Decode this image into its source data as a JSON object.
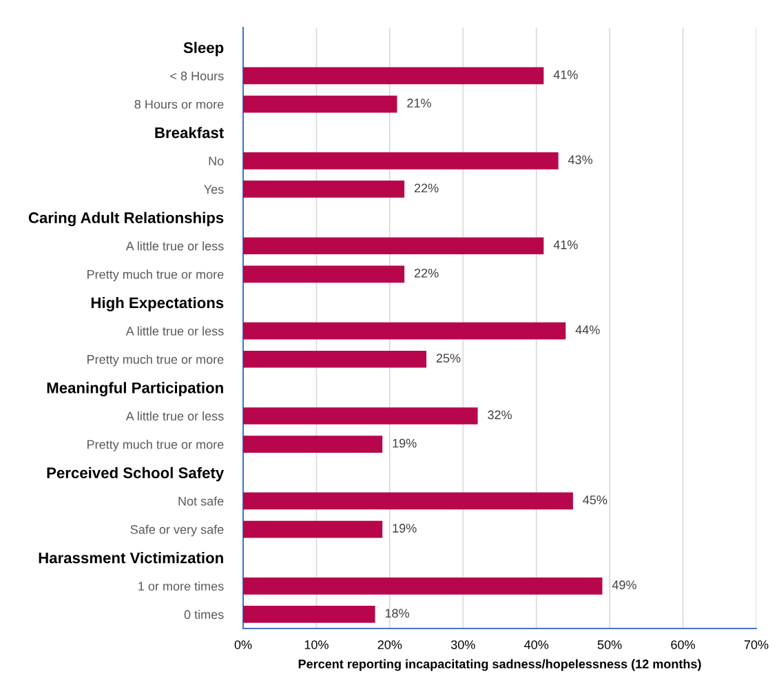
{
  "chart_data": {
    "type": "bar",
    "orientation": "horizontal",
    "xlabel": "Percent reporting incapacitating sadness/hopelessness (12 months)",
    "categories": [
      "Sleep",
      "< 8 Hours",
      "8 Hours or more",
      "Breakfast",
      "No",
      "Yes",
      "Caring Adult Relationships",
      "A little true or less",
      "Pretty much true or more",
      "High Expectations",
      "A little true or less",
      "Pretty much true or more",
      "Meaningful Participation",
      "A little true or less",
      "Pretty much true or more",
      "Perceived School Safety",
      "Not safe",
      "Safe or very safe",
      "Harassment Victimization",
      "1 or more times",
      "0 times"
    ],
    "values": [
      null,
      41,
      21,
      null,
      43,
      22,
      null,
      41,
      22,
      null,
      44,
      25,
      null,
      32,
      19,
      null,
      45,
      19,
      null,
      49,
      18
    ],
    "value_labels": [
      null,
      "41%",
      "21%",
      null,
      "43%",
      "22%",
      null,
      "41%",
      "22%",
      null,
      "44%",
      "25%",
      null,
      "32%",
      "19%",
      null,
      "45%",
      "19%",
      null,
      "49%",
      "18%"
    ],
    "color": "#b8064c",
    "xlim": [
      0,
      70
    ],
    "xticks": [
      {
        "value": 0,
        "label": "0%"
      },
      {
        "value": 10,
        "label": "10%"
      },
      {
        "value": 20,
        "label": "20%"
      },
      {
        "value": 30,
        "label": "30%"
      },
      {
        "value": 40,
        "label": "40%"
      },
      {
        "value": 50,
        "label": "50%"
      },
      {
        "value": 60,
        "label": "60%"
      },
      {
        "value": 70,
        "label": "70%"
      }
    ],
    "grid": "x",
    "legend": false
  }
}
